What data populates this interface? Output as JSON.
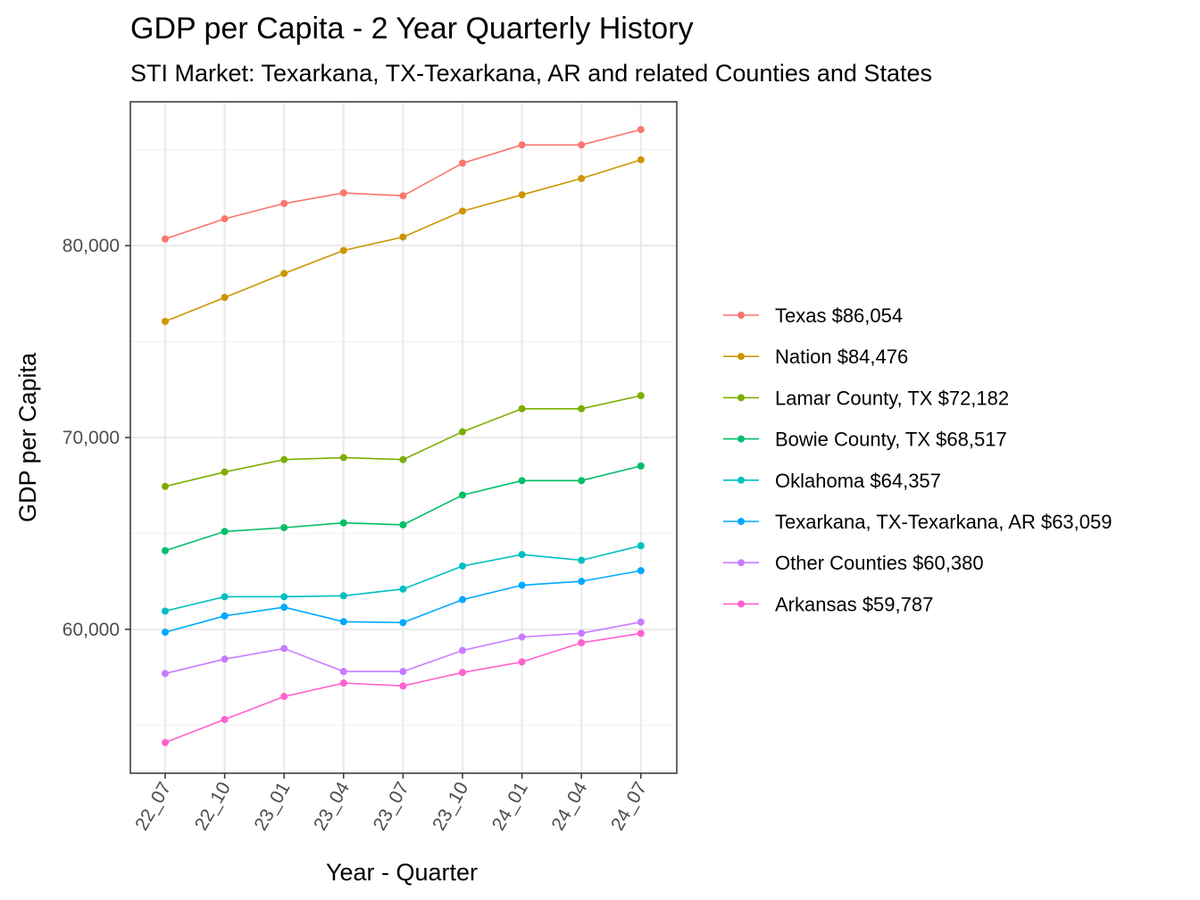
{
  "chart_data": {
    "type": "line",
    "title": "GDP per Capita - 2 Year Quarterly History",
    "subtitle": "STI Market: Texarkana, TX-Texarkana, AR and related Counties and States",
    "xlabel": "Year - Quarter",
    "ylabel": "GDP per Capita",
    "categories": [
      "22_07",
      "22_10",
      "23_01",
      "23_04",
      "23_07",
      "23_10",
      "24_01",
      "24_04",
      "24_07"
    ],
    "ylim": [
      52500,
      87500
    ],
    "yticks": [
      60000,
      70000,
      80000
    ],
    "ytick_labels": [
      "60,000",
      "70,000",
      "80,000"
    ],
    "grid": true,
    "legend_position": "right",
    "series": [
      {
        "name": "Texas $86,054",
        "color": "#F8766D",
        "values": [
          80350,
          81400,
          82200,
          82750,
          82600,
          84300,
          85250,
          85250,
          86054
        ]
      },
      {
        "name": "Nation $84,476",
        "color": "#CD9600",
        "values": [
          76050,
          77300,
          78550,
          79750,
          80450,
          81800,
          82650,
          83500,
          84476
        ]
      },
      {
        "name": "Lamar County, TX $72,182",
        "color": "#7CAE00",
        "values": [
          67450,
          68200,
          68850,
          68950,
          68850,
          70300,
          71500,
          71500,
          72182
        ]
      },
      {
        "name": "Bowie County, TX $68,517",
        "color": "#00BE67",
        "values": [
          64100,
          65100,
          65300,
          65550,
          65450,
          67000,
          67750,
          67750,
          68517
        ]
      },
      {
        "name": "Oklahoma $64,357",
        "color": "#00BFC4",
        "values": [
          60950,
          61700,
          61700,
          61750,
          62100,
          63300,
          63900,
          63600,
          64357
        ]
      },
      {
        "name": "Texarkana, TX-Texarkana, AR $63,059",
        "color": "#00A9FF",
        "values": [
          59850,
          60700,
          61150,
          60400,
          60350,
          61550,
          62300,
          62500,
          63059
        ]
      },
      {
        "name": "Other Counties $60,380",
        "color": "#C77CFF",
        "values": [
          57700,
          58450,
          59000,
          57800,
          57800,
          58900,
          59600,
          59800,
          60380
        ]
      },
      {
        "name": "Arkansas $59,787",
        "color": "#FF61CC",
        "values": [
          54100,
          55300,
          56500,
          57200,
          57050,
          57750,
          58300,
          59300,
          59787
        ]
      }
    ]
  }
}
